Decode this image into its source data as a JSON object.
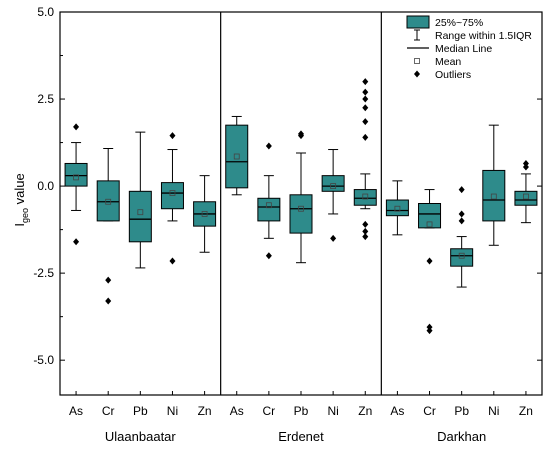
{
  "chart_data": {
    "type": "box",
    "ylabel_main": "I",
    "ylabel_sub": "geo",
    "ylabel_tail": " value",
    "ylim": [
      -6.0,
      5.0
    ],
    "yticks": [
      5.0,
      2.5,
      0.0,
      -2.5,
      -5.0
    ],
    "ytick_labels": [
      "5.0",
      "2.5",
      "0.0",
      "-2.5",
      "-5.0"
    ],
    "box_color": "#2e8b8b",
    "legend": {
      "position": "top-right",
      "entries": [
        "25%~75%",
        "Range within 1.5IQR",
        "Median Line",
        "Mean",
        "Outliers"
      ]
    },
    "groups": [
      {
        "name": "Ulaanbaatar",
        "boxes": [
          {
            "element": "As",
            "q1": 0.0,
            "median": 0.3,
            "q3": 0.65,
            "whisker_low": -0.7,
            "whisker_high": 1.25,
            "mean": 0.25,
            "outliers": [
              1.7,
              -1.6
            ]
          },
          {
            "element": "Cr",
            "q1": -1.0,
            "median": -0.45,
            "q3": 0.15,
            "whisker_low": -1.0,
            "whisker_high": 1.08,
            "mean": -0.45,
            "outliers": [
              -2.7,
              -3.3
            ]
          },
          {
            "element": "Pb",
            "q1": -1.6,
            "median": -0.95,
            "q3": -0.15,
            "whisker_low": -2.35,
            "whisker_high": 1.55,
            "mean": -0.75,
            "outliers": []
          },
          {
            "element": "Ni",
            "q1": -0.65,
            "median": -0.2,
            "q3": 0.1,
            "whisker_low": -1.0,
            "whisker_high": 1.05,
            "mean": -0.2,
            "outliers": [
              1.45,
              -2.15
            ]
          },
          {
            "element": "Zn",
            "q1": -1.15,
            "median": -0.8,
            "q3": -0.45,
            "whisker_low": -1.9,
            "whisker_high": 0.3,
            "mean": -0.8,
            "outliers": []
          }
        ]
      },
      {
        "name": "Erdenet",
        "boxes": [
          {
            "element": "As",
            "q1": -0.05,
            "median": 0.7,
            "q3": 1.75,
            "whisker_low": -0.25,
            "whisker_high": 2.0,
            "mean": 0.85,
            "outliers": []
          },
          {
            "element": "Cr",
            "q1": -1.0,
            "median": -0.6,
            "q3": -0.35,
            "whisker_low": -1.5,
            "whisker_high": 0.3,
            "mean": -0.55,
            "outliers": [
              1.15,
              -2.0
            ]
          },
          {
            "element": "Pb",
            "q1": -1.35,
            "median": -0.65,
            "q3": -0.25,
            "whisker_low": -2.2,
            "whisker_high": 0.95,
            "mean": -0.65,
            "outliers": [
              1.5,
              1.45
            ]
          },
          {
            "element": "Ni",
            "q1": -0.15,
            "median": 0.0,
            "q3": 0.3,
            "whisker_low": -0.8,
            "whisker_high": 1.05,
            "mean": 0.0,
            "outliers": [
              -1.5
            ]
          },
          {
            "element": "Zn",
            "q1": -0.55,
            "median": -0.35,
            "q3": -0.1,
            "whisker_low": -0.65,
            "whisker_high": 0.35,
            "mean": -0.3,
            "outliers": [
              3.0,
              2.7,
              2.5,
              2.25,
              1.85,
              1.4,
              -1.1,
              -1.3,
              -1.45
            ]
          }
        ]
      },
      {
        "name": "Darkhan",
        "boxes": [
          {
            "element": "As",
            "q1": -0.85,
            "median": -0.7,
            "q3": -0.4,
            "whisker_low": -1.4,
            "whisker_high": 0.15,
            "mean": -0.65,
            "outliers": []
          },
          {
            "element": "Cr",
            "q1": -1.2,
            "median": -0.8,
            "q3": -0.5,
            "whisker_low": -1.2,
            "whisker_high": -0.1,
            "mean": -1.1,
            "outliers": [
              -2.15,
              -4.05,
              -4.15
            ]
          },
          {
            "element": "Pb",
            "q1": -2.3,
            "median": -2.0,
            "q3": -1.8,
            "whisker_low": -2.9,
            "whisker_high": -1.45,
            "mean": -2.0,
            "outliers": [
              -0.1,
              -0.8,
              -1.0
            ]
          },
          {
            "element": "Ni",
            "q1": -1.0,
            "median": -0.4,
            "q3": 0.45,
            "whisker_low": -1.7,
            "whisker_high": 1.75,
            "mean": -0.3,
            "outliers": []
          },
          {
            "element": "Zn",
            "q1": -0.55,
            "median": -0.4,
            "q3": -0.15,
            "whisker_low": -1.05,
            "whisker_high": 0.35,
            "mean": -0.3,
            "outliers": [
              0.65,
              0.55
            ]
          }
        ]
      }
    ]
  }
}
